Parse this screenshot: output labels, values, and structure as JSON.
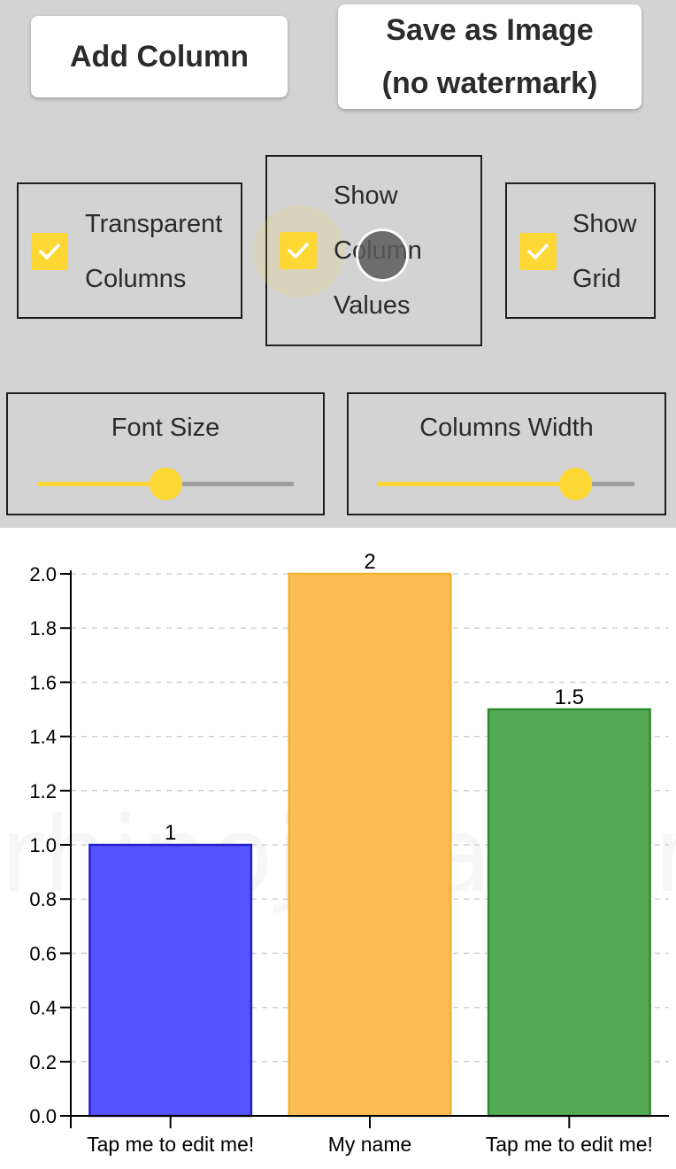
{
  "toolbar": {
    "add_column_label": "Add Column",
    "save_label_line1": "Save as Image",
    "save_label_line2": "(no watermark)"
  },
  "options": {
    "transparent_columns": {
      "line1": "Transparent",
      "line2": "Columns",
      "checked": true
    },
    "show_values": {
      "line1": "Show",
      "line2": "Column",
      "line3": "Values",
      "checked": true
    },
    "show_grid": {
      "line1": "Show",
      "line2": "Grid",
      "checked": true
    }
  },
  "sliders": {
    "font_size": {
      "label": "Font Size",
      "value": 0.5
    },
    "columns_width": {
      "label": "Columns Width",
      "value": 0.77
    }
  },
  "colors": {
    "panel_bg": "#d3d3d3",
    "accent": "#fdd835"
  },
  "icons": {
    "checkbox_check": "check-icon"
  },
  "chart_data": {
    "type": "bar",
    "categories": [
      "Tap me to edit me!",
      "My name",
      "Tap me to edit me!"
    ],
    "values": [
      1,
      2,
      1.5
    ],
    "data_labels": [
      "1",
      "2",
      "1.5"
    ],
    "bar_colors": [
      "#5555ff",
      "#fdbf55",
      "#55aa55"
    ],
    "bar_border_colors": [
      "#2222cc",
      "#f0b030",
      "#2d8a2d"
    ],
    "ylim": [
      0,
      2
    ],
    "yticks": [
      "0.0",
      "0.2",
      "0.4",
      "0.6",
      "0.8",
      "1.0",
      "1.2",
      "1.4",
      "1.6",
      "1.8",
      "2.0"
    ],
    "grid": true,
    "watermark": "rhinojosa.com"
  }
}
